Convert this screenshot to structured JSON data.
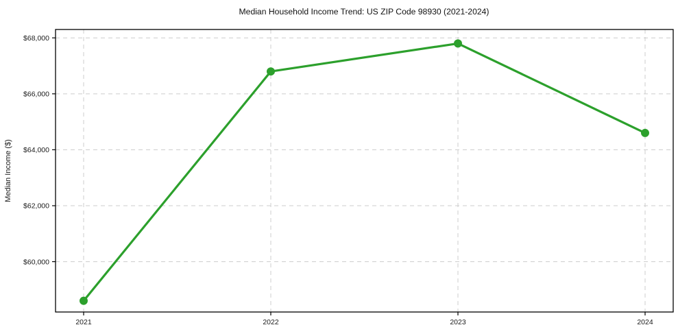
{
  "figure": {
    "background": "#ffffff"
  },
  "chart_data": {
    "type": "line",
    "title": "Median Household Income Trend: US ZIP Code 98930 (2021-2024)",
    "xlabel": "",
    "ylabel": "Median Income ($)",
    "categories": [
      "2021",
      "2022",
      "2023",
      "2024"
    ],
    "series": [
      {
        "name": "median_income",
        "values": [
          58600,
          66800,
          67800,
          64600
        ]
      }
    ],
    "ylim": [
      58200,
      68300
    ],
    "yticks": [
      60000,
      62000,
      64000,
      66000,
      68000
    ],
    "ytick_labels": [
      "$60,000",
      "$62,000",
      "$64,000",
      "$66,000",
      "$68,000"
    ],
    "grid": true,
    "grid_line_style": "dashed",
    "grid_color": "#cccccc",
    "line_color": "#2ca02c",
    "marker": "circle",
    "marker_color": "#2ca02c",
    "axis_color": "#000000",
    "legend_position": "none"
  }
}
